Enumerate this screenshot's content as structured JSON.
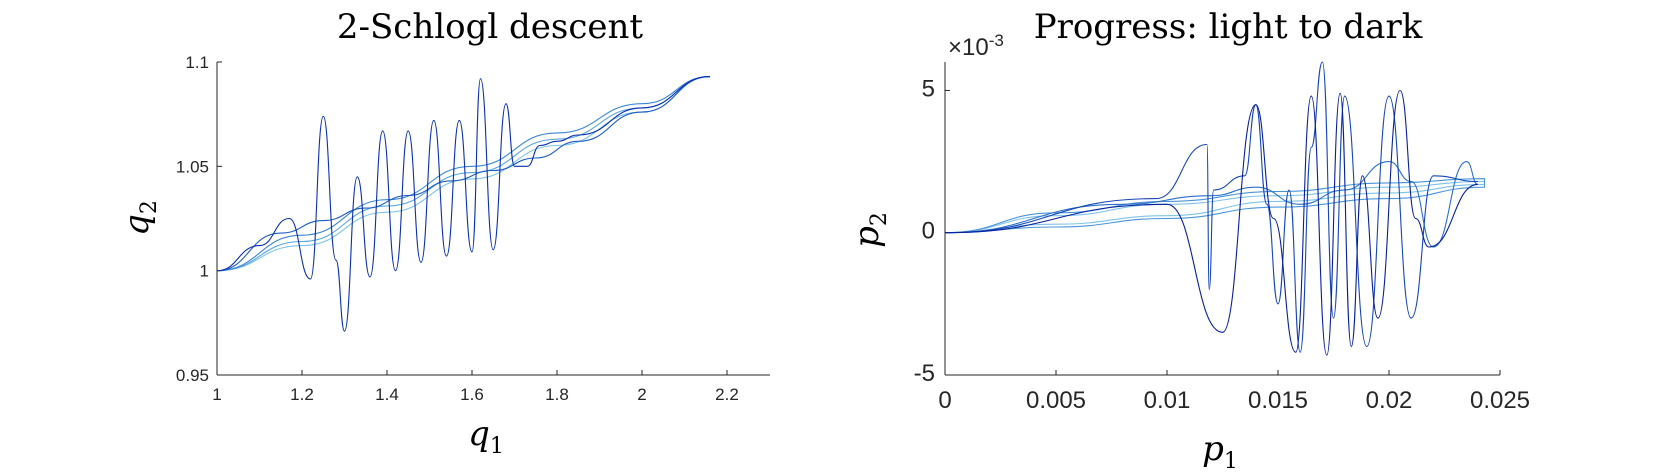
{
  "chart_data": [
    {
      "type": "line",
      "title": "2-Schlogl descent",
      "xlabel": "q",
      "xlabel_sub": "1",
      "ylabel": "q",
      "ylabel_sub": "2",
      "xlim": [
        1,
        2.2
      ],
      "ylim": [
        0.95,
        1.1
      ],
      "xticks": [
        1,
        1.2,
        1.4,
        1.6,
        1.8,
        2,
        2.2
      ],
      "xtick_labels": [
        "1",
        "1.2",
        "1.4",
        "1.6",
        "1.8",
        "2",
        "2.2"
      ],
      "yticks": [
        0.95,
        1,
        1.05,
        1.1
      ],
      "ytick_labels": [
        "0.95",
        "1",
        "1.05",
        "1.1"
      ],
      "color_note": "light to dark blue",
      "series": [
        {
          "color": "#7ec3ea",
          "x": [
            1.0,
            1.2,
            1.4,
            1.6,
            1.8,
            2.0,
            2.16
          ],
          "y": [
            1.0,
            1.012,
            1.028,
            1.044,
            1.06,
            1.076,
            1.093
          ]
        },
        {
          "color": "#5aa6e0",
          "x": [
            1.0,
            1.2,
            1.4,
            1.6,
            1.8,
            2.0,
            2.16
          ],
          "y": [
            1.0,
            1.014,
            1.031,
            1.047,
            1.063,
            1.078,
            1.093
          ]
        },
        {
          "color": "#3a86d4",
          "x": [
            1.0,
            1.2,
            1.4,
            1.6,
            1.8,
            2.0,
            2.16
          ],
          "y": [
            1.0,
            1.017,
            1.034,
            1.05,
            1.066,
            1.08,
            1.093
          ]
        },
        {
          "color": "#1d5ec4",
          "x": [
            1.0,
            1.15,
            1.25,
            1.35,
            1.45,
            1.55,
            1.65,
            1.75,
            1.85,
            2.0,
            2.16
          ],
          "y": [
            1.0,
            1.018,
            1.024,
            1.03,
            1.036,
            1.043,
            1.048,
            1.054,
            1.062,
            1.076,
            1.093
          ]
        },
        {
          "color": "#0a2fb0",
          "x": [
            1.0,
            1.1,
            1.17,
            1.22,
            1.25,
            1.28,
            1.3,
            1.33,
            1.36,
            1.39,
            1.42,
            1.45,
            1.48,
            1.51,
            1.54,
            1.57,
            1.6,
            1.62,
            1.65,
            1.68,
            1.7,
            1.73,
            1.76,
            1.8,
            1.85,
            2.0,
            2.16
          ],
          "y": [
            1.0,
            1.012,
            1.025,
            0.996,
            1.074,
            1.005,
            0.971,
            1.045,
            0.997,
            1.067,
            1.0,
            1.067,
            1.004,
            1.072,
            1.007,
            1.072,
            1.009,
            1.092,
            1.01,
            1.08,
            1.05,
            1.05,
            1.06,
            1.062,
            1.065,
            1.078,
            1.093
          ]
        }
      ]
    },
    {
      "type": "line",
      "title": "Progress: light to dark",
      "exponent_label": "×10",
      "exponent_power": "-3",
      "xlabel": "p",
      "xlabel_sub": "1",
      "ylabel": "p",
      "ylabel_sub": "2",
      "xlim": [
        0,
        0.025
      ],
      "ylim": [
        -5,
        6
      ],
      "y_unit_scale": "1e-3",
      "xticks": [
        0,
        0.005,
        0.01,
        0.015,
        0.02,
        0.025
      ],
      "xtick_labels": [
        "0",
        "0.005",
        "0.01",
        "0.015",
        "0.02",
        "0.025"
      ],
      "yticks": [
        -5,
        0,
        5
      ],
      "ytick_labels": [
        "-5",
        "0",
        "5"
      ],
      "series": [
        {
          "color": "#7ec3ea",
          "x": [
            0,
            0.005,
            0.01,
            0.015,
            0.02,
            0.0243,
            0.0243,
            0.02,
            0.015,
            0.01,
            0.005,
            0
          ],
          "y": [
            0,
            0.6,
            1.0,
            1.3,
            1.6,
            1.8,
            1.7,
            1.4,
            1.1,
            0.6,
            0.3,
            0
          ]
        },
        {
          "color": "#4a95da",
          "x": [
            0,
            0.005,
            0.01,
            0.015,
            0.02,
            0.0243,
            0.0243,
            0.02,
            0.015,
            0.01,
            0.005,
            0
          ],
          "y": [
            0,
            0.7,
            1.1,
            1.45,
            1.75,
            1.9,
            1.6,
            1.2,
            0.9,
            0.5,
            0.2,
            0
          ]
        },
        {
          "color": "#2a6fcc",
          "x": [
            0,
            0.008,
            0.012,
            0.014,
            0.016,
            0.018,
            0.02,
            0.021,
            0.022,
            0.0235,
            0.024
          ],
          "y": [
            0,
            1.0,
            1.3,
            1.6,
            1.0,
            1.5,
            2.5,
            1.8,
            -0.5,
            2.5,
            1.7
          ]
        },
        {
          "color": "#1545b8",
          "x": [
            0,
            0.0095,
            0.0118,
            0.0119,
            0.0121,
            0.0135,
            0.014,
            0.0145,
            0.015,
            0.0155,
            0.016,
            0.0165,
            0.017,
            0.0175,
            0.018,
            0.019,
            0.02,
            0.021,
            0.022,
            0.024
          ],
          "y": [
            0,
            1.2,
            3.1,
            -2.0,
            1.5,
            2.0,
            4.5,
            1.0,
            -2.5,
            1.5,
            -4.2,
            3.0,
            6.0,
            -3.0,
            4.8,
            -4.0,
            4.8,
            -3.0,
            2.0,
            1.8
          ]
        },
        {
          "color": "#081f9c",
          "x": [
            0,
            0.01,
            0.0125,
            0.014,
            0.0148,
            0.0158,
            0.0165,
            0.0172,
            0.0178,
            0.0183,
            0.0188,
            0.0195,
            0.0205,
            0.0212,
            0.0218,
            0.024
          ],
          "y": [
            0,
            1.0,
            -3.5,
            4.5,
            0.5,
            -4.2,
            4.8,
            -4.3,
            4.9,
            -4.0,
            2.0,
            -3.0,
            5.0,
            0.5,
            -0.5,
            1.7
          ]
        }
      ]
    }
  ]
}
